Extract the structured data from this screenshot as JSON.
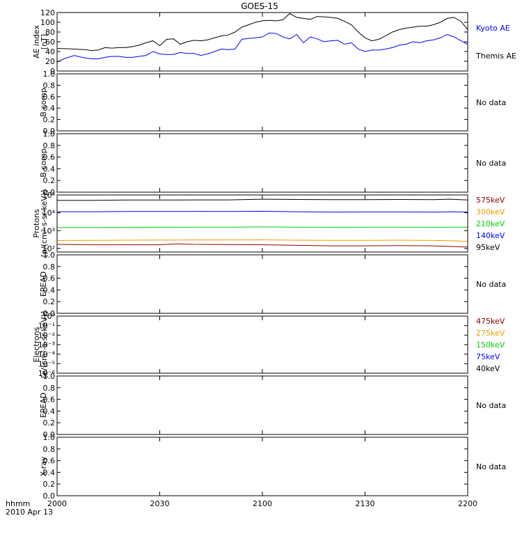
{
  "title": "GOES-15",
  "xaxis": {
    "corner_label_1": "hhmm",
    "corner_label_2": "2010 Apr 13",
    "range_minutes": [
      0,
      120
    ],
    "ticks": [
      {
        "label": "2000",
        "minute": 0
      },
      {
        "label": "2030",
        "minute": 30
      },
      {
        "label": "2100",
        "minute": 60
      },
      {
        "label": "2130",
        "minute": 90
      },
      {
        "label": "2200",
        "minute": 120
      }
    ]
  },
  "no_data_text": "No data",
  "chart_data": [
    {
      "id": "ae",
      "type": "line",
      "ylabel_lines": [
        "AE index",
        "[nT]"
      ],
      "ylim": [
        0,
        120
      ],
      "yticks": [
        {
          "v": 0,
          "label": "0"
        },
        {
          "v": 20,
          "label": "20"
        },
        {
          "v": 40,
          "label": "40"
        },
        {
          "v": 60,
          "label": "60"
        },
        {
          "v": 80,
          "label": "80"
        },
        {
          "v": 100,
          "label": "100"
        },
        {
          "v": 120,
          "label": "120"
        }
      ],
      "legend": [
        {
          "name": "Kyoto AE",
          "color": "#0000ff"
        },
        {
          "name": "Themis AE",
          "color": "#000000"
        }
      ],
      "series": [
        {
          "name": "Kyoto AE",
          "color": "#0000ff",
          "x": [
            0,
            2,
            5,
            8,
            10,
            12,
            14,
            16,
            18,
            20,
            22,
            24,
            26,
            28,
            30,
            32,
            34,
            36,
            38,
            40,
            42,
            44,
            46,
            48,
            50,
            52,
            54,
            56,
            58,
            60,
            62,
            64,
            66,
            68,
            70,
            72,
            74,
            76,
            78,
            80,
            82,
            84,
            86,
            88,
            90,
            92,
            94,
            96,
            98,
            100,
            102,
            104,
            106,
            108,
            110,
            112,
            114,
            116,
            118,
            120
          ],
          "y": [
            18,
            25,
            32,
            27,
            25,
            25,
            28,
            30,
            30,
            28,
            28,
            30,
            32,
            40,
            35,
            34,
            34,
            38,
            36,
            36,
            32,
            35,
            40,
            45,
            44,
            45,
            65,
            67,
            68,
            70,
            78,
            77,
            70,
            66,
            75,
            58,
            70,
            66,
            60,
            62,
            63,
            55,
            58,
            45,
            40,
            43,
            43,
            45,
            48,
            53,
            55,
            60,
            58,
            62,
            64,
            68,
            75,
            70,
            62,
            55
          ]
        },
        {
          "name": "Themis AE",
          "color": "#000000",
          "x": [
            0,
            2,
            5,
            8,
            10,
            12,
            14,
            16,
            18,
            20,
            22,
            24,
            26,
            28,
            30,
            32,
            34,
            36,
            38,
            40,
            42,
            44,
            46,
            48,
            50,
            52,
            54,
            56,
            58,
            60,
            62,
            64,
            66,
            68,
            70,
            72,
            74,
            76,
            78,
            80,
            82,
            84,
            86,
            88,
            90,
            92,
            94,
            96,
            98,
            100,
            102,
            104,
            106,
            108,
            110,
            112,
            114,
            116,
            118,
            120
          ],
          "y": [
            46,
            46,
            45,
            44,
            42,
            43,
            48,
            47,
            48,
            48,
            50,
            53,
            58,
            62,
            52,
            65,
            66,
            55,
            60,
            63,
            62,
            64,
            68,
            72,
            74,
            80,
            90,
            95,
            100,
            103,
            104,
            103,
            105,
            118,
            110,
            108,
            106,
            112,
            111,
            110,
            108,
            102,
            95,
            80,
            68,
            62,
            65,
            72,
            80,
            85,
            88,
            90,
            92,
            92,
            95,
            100,
            108,
            110,
            102,
            85
          ]
        }
      ]
    },
    {
      "id": "bcomp1",
      "type": "line",
      "ylabel_lines": [
        "B comp"
      ],
      "ylim": [
        0,
        1
      ],
      "yticks": [
        {
          "v": 0,
          "label": "0.0"
        },
        {
          "v": 0.2,
          "label": "0.2"
        },
        {
          "v": 0.4,
          "label": "0.4"
        },
        {
          "v": 0.6,
          "label": "0.6"
        },
        {
          "v": 0.8,
          "label": "0.8"
        },
        {
          "v": 1.0,
          "label": "1.0"
        }
      ],
      "no_data": true,
      "series": []
    },
    {
      "id": "bcomp2",
      "type": "line",
      "ylabel_lines": [
        "B comp"
      ],
      "ylim": [
        0,
        1
      ],
      "yticks": [
        {
          "v": 0,
          "label": "0.0"
        },
        {
          "v": 0.2,
          "label": "0.2"
        },
        {
          "v": 0.4,
          "label": "0.4"
        },
        {
          "v": 0.6,
          "label": "0.6"
        },
        {
          "v": 0.8,
          "label": "0.8"
        },
        {
          "v": 1.0,
          "label": "1.0"
        }
      ],
      "no_data": true,
      "series": []
    },
    {
      "id": "protons",
      "type": "line",
      "log_scale": true,
      "ylabel_lines": [
        "Protons",
        "[p/(cm²-s-sr-keV)]"
      ],
      "ylim_exp": [
        1.8,
        5
      ],
      "yticks": [
        {
          "e": 2,
          "label": "10²"
        },
        {
          "e": 3,
          "label": "10³"
        },
        {
          "e": 4,
          "label": "10⁴"
        },
        {
          "e": 5,
          "label": "10⁵"
        }
      ],
      "legend": [
        {
          "name": "575keV",
          "color": "#8b0000"
        },
        {
          "name": "300keV",
          "color": "#e6a000"
        },
        {
          "name": "210keV",
          "color": "#00d000"
        },
        {
          "name": "140keV",
          "color": "#0000ff"
        },
        {
          "name": "95keV",
          "color": "#000000"
        }
      ],
      "series": [
        {
          "name": "95keV",
          "color": "#000000",
          "x": [
            0,
            10,
            20,
            30,
            40,
            50,
            60,
            70,
            80,
            90,
            100,
            110,
            115,
            120
          ],
          "y": [
            50000,
            50000,
            52000,
            52000,
            53000,
            53000,
            58000,
            56000,
            55000,
            55000,
            56000,
            55000,
            58000,
            52000
          ]
        },
        {
          "name": "140keV",
          "color": "#0000ff",
          "x": [
            0,
            10,
            20,
            30,
            40,
            50,
            60,
            70,
            80,
            90,
            100,
            110,
            115,
            120
          ],
          "y": [
            11500,
            11500,
            11800,
            11800,
            12000,
            11800,
            12200,
            11500,
            11000,
            11200,
            11200,
            11000,
            11500,
            11000
          ]
        },
        {
          "name": "210keV",
          "color": "#00d000",
          "x": [
            0,
            10,
            20,
            30,
            40,
            50,
            60,
            70,
            80,
            90,
            100,
            110,
            115,
            120
          ],
          "y": [
            1500,
            1500,
            1520,
            1550,
            1560,
            1560,
            1600,
            1580,
            1550,
            1560,
            1570,
            1550,
            1560,
            1580
          ]
        },
        {
          "name": "300keV",
          "color": "#e6a000",
          "x": [
            0,
            10,
            20,
            30,
            40,
            50,
            60,
            70,
            80,
            90,
            100,
            110,
            115,
            120
          ],
          "y": [
            280,
            285,
            290,
            295,
            300,
            300,
            305,
            290,
            285,
            285,
            290,
            280,
            270,
            250
          ]
        },
        {
          "name": "575keV",
          "color": "#8b0000",
          "x": [
            0,
            10,
            20,
            30,
            35,
            40,
            50,
            60,
            70,
            80,
            90,
            100,
            110,
            115,
            120
          ],
          "y": [
            170,
            160,
            160,
            160,
            180,
            170,
            165,
            160,
            150,
            140,
            140,
            145,
            140,
            130,
            120
          ]
        }
      ]
    },
    {
      "id": "epead1",
      "type": "line",
      "ylabel_lines": [
        "EPEAD"
      ],
      "ylim": [
        0,
        1
      ],
      "yticks": [
        {
          "v": 0,
          "label": "0.0"
        },
        {
          "v": 0.2,
          "label": "0.2"
        },
        {
          "v": 0.4,
          "label": "0.4"
        },
        {
          "v": 0.6,
          "label": "0.6"
        },
        {
          "v": 0.8,
          "label": "0.8"
        },
        {
          "v": 1.0,
          "label": "1.0"
        }
      ],
      "no_data": true,
      "series": []
    },
    {
      "id": "electrons",
      "type": "line",
      "log_scale": true,
      "ylabel_lines": [
        "Electrons",
        "[e/(cm²-s-sr-keV)]"
      ],
      "ylim_exp": [
        -6,
        0
      ],
      "yticks": [
        {
          "e": 0,
          "label": "10⁰"
        },
        {
          "e": -1,
          "label": "10⁻¹"
        },
        {
          "e": -2,
          "label": "10⁻²"
        },
        {
          "e": -3,
          "label": "10⁻³"
        },
        {
          "e": -4,
          "label": "10⁻⁴"
        },
        {
          "e": -5,
          "label": "10⁻⁵"
        },
        {
          "e": -6,
          "label": "10⁻⁶"
        }
      ],
      "legend": [
        {
          "name": "475keV",
          "color": "#8b0000"
        },
        {
          "name": "275keV",
          "color": "#e6a000"
        },
        {
          "name": "150keV",
          "color": "#00d000"
        },
        {
          "name": "75keV",
          "color": "#0000ff"
        },
        {
          "name": "40keV",
          "color": "#000000"
        }
      ],
      "series": []
    },
    {
      "id": "epead2",
      "type": "line",
      "ylabel_lines": [
        "EPEAD"
      ],
      "ylim": [
        0,
        1
      ],
      "yticks": [
        {
          "v": 0,
          "label": "0.0"
        },
        {
          "v": 0.2,
          "label": "0.2"
        },
        {
          "v": 0.4,
          "label": "0.4"
        },
        {
          "v": 0.6,
          "label": "0.6"
        },
        {
          "v": 0.8,
          "label": "0.8"
        },
        {
          "v": 1.0,
          "label": "1.0"
        }
      ],
      "no_data": true,
      "series": []
    },
    {
      "id": "xray",
      "type": "line",
      "ylabel_lines": [
        "X-ray"
      ],
      "ylim": [
        0,
        1
      ],
      "yticks": [
        {
          "v": 0,
          "label": "0.0"
        },
        {
          "v": 0.2,
          "label": "0.2"
        },
        {
          "v": 0.4,
          "label": "0.4"
        },
        {
          "v": 0.6,
          "label": "0.6"
        },
        {
          "v": 0.8,
          "label": "0.8"
        },
        {
          "v": 1.0,
          "label": "1.0"
        }
      ],
      "no_data": true,
      "series": []
    }
  ]
}
